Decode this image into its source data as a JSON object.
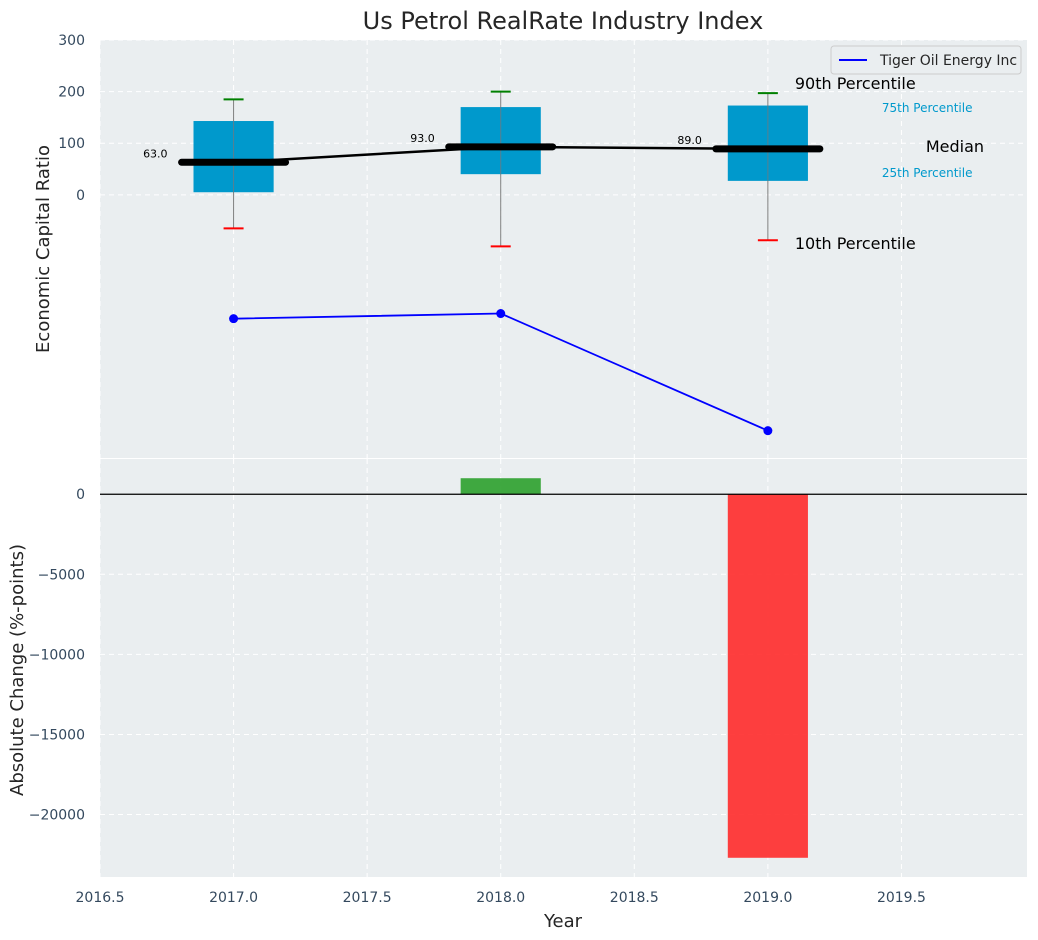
{
  "chart_data": [
    {
      "type": "box",
      "title": "Us Petrol RealRate Industry Index",
      "ylabel": "Economic Capital Ratio",
      "xlim": [
        2016.5,
        2019.97
      ],
      "ylim": [
        -510,
        300
      ],
      "y_ticks": [
        0,
        100,
        200,
        300
      ],
      "grid": true,
      "legend_position": "top-right",
      "colors": {
        "box": "#0099cc",
        "median": "#000000",
        "company": "#0000ff",
        "p90_cap": "#008000",
        "p10_cap": "#ff0000"
      },
      "boxes": [
        {
          "x": 2017,
          "p10": -65,
          "p25": 5,
          "median": 63,
          "p75": 143,
          "p90": 185,
          "median_label": "63.0"
        },
        {
          "x": 2018,
          "p10": -100,
          "p25": 40,
          "median": 93,
          "p75": 170,
          "p90": 200,
          "median_label": "93.0"
        },
        {
          "x": 2019,
          "p10": -88,
          "p25": 27,
          "median": 89,
          "p75": 173,
          "p90": 197,
          "median_label": "89.0"
        }
      ],
      "series": [
        {
          "name": "Tiger Oil Energy Inc",
          "x": [
            2017,
            2018,
            2019
          ],
          "y": [
            -240,
            -230,
            -457
          ]
        }
      ],
      "annotations": {
        "p90": "90th Percentile",
        "p75": "75th Percentile",
        "median": "Median",
        "p25": "25th Percentile",
        "p10": "10th Percentile"
      }
    },
    {
      "type": "bar",
      "xlabel": "Year",
      "ylabel": "Absolute Change (%-points)",
      "xlim": [
        2016.5,
        2019.97
      ],
      "ylim": [
        -23900,
        2200
      ],
      "x_ticks": [
        "2016.5",
        "2017.0",
        "2017.5",
        "2018.0",
        "2018.5",
        "2019.0",
        "2019.5"
      ],
      "y_ticks": [
        "0",
        "−5000",
        "−10000",
        "−15000",
        "−20000"
      ],
      "grid": true,
      "x": [
        2018,
        2019
      ],
      "values": [
        1000,
        -22700
      ],
      "colors": [
        "#2ca02c",
        "#ff2a2a"
      ]
    }
  ]
}
